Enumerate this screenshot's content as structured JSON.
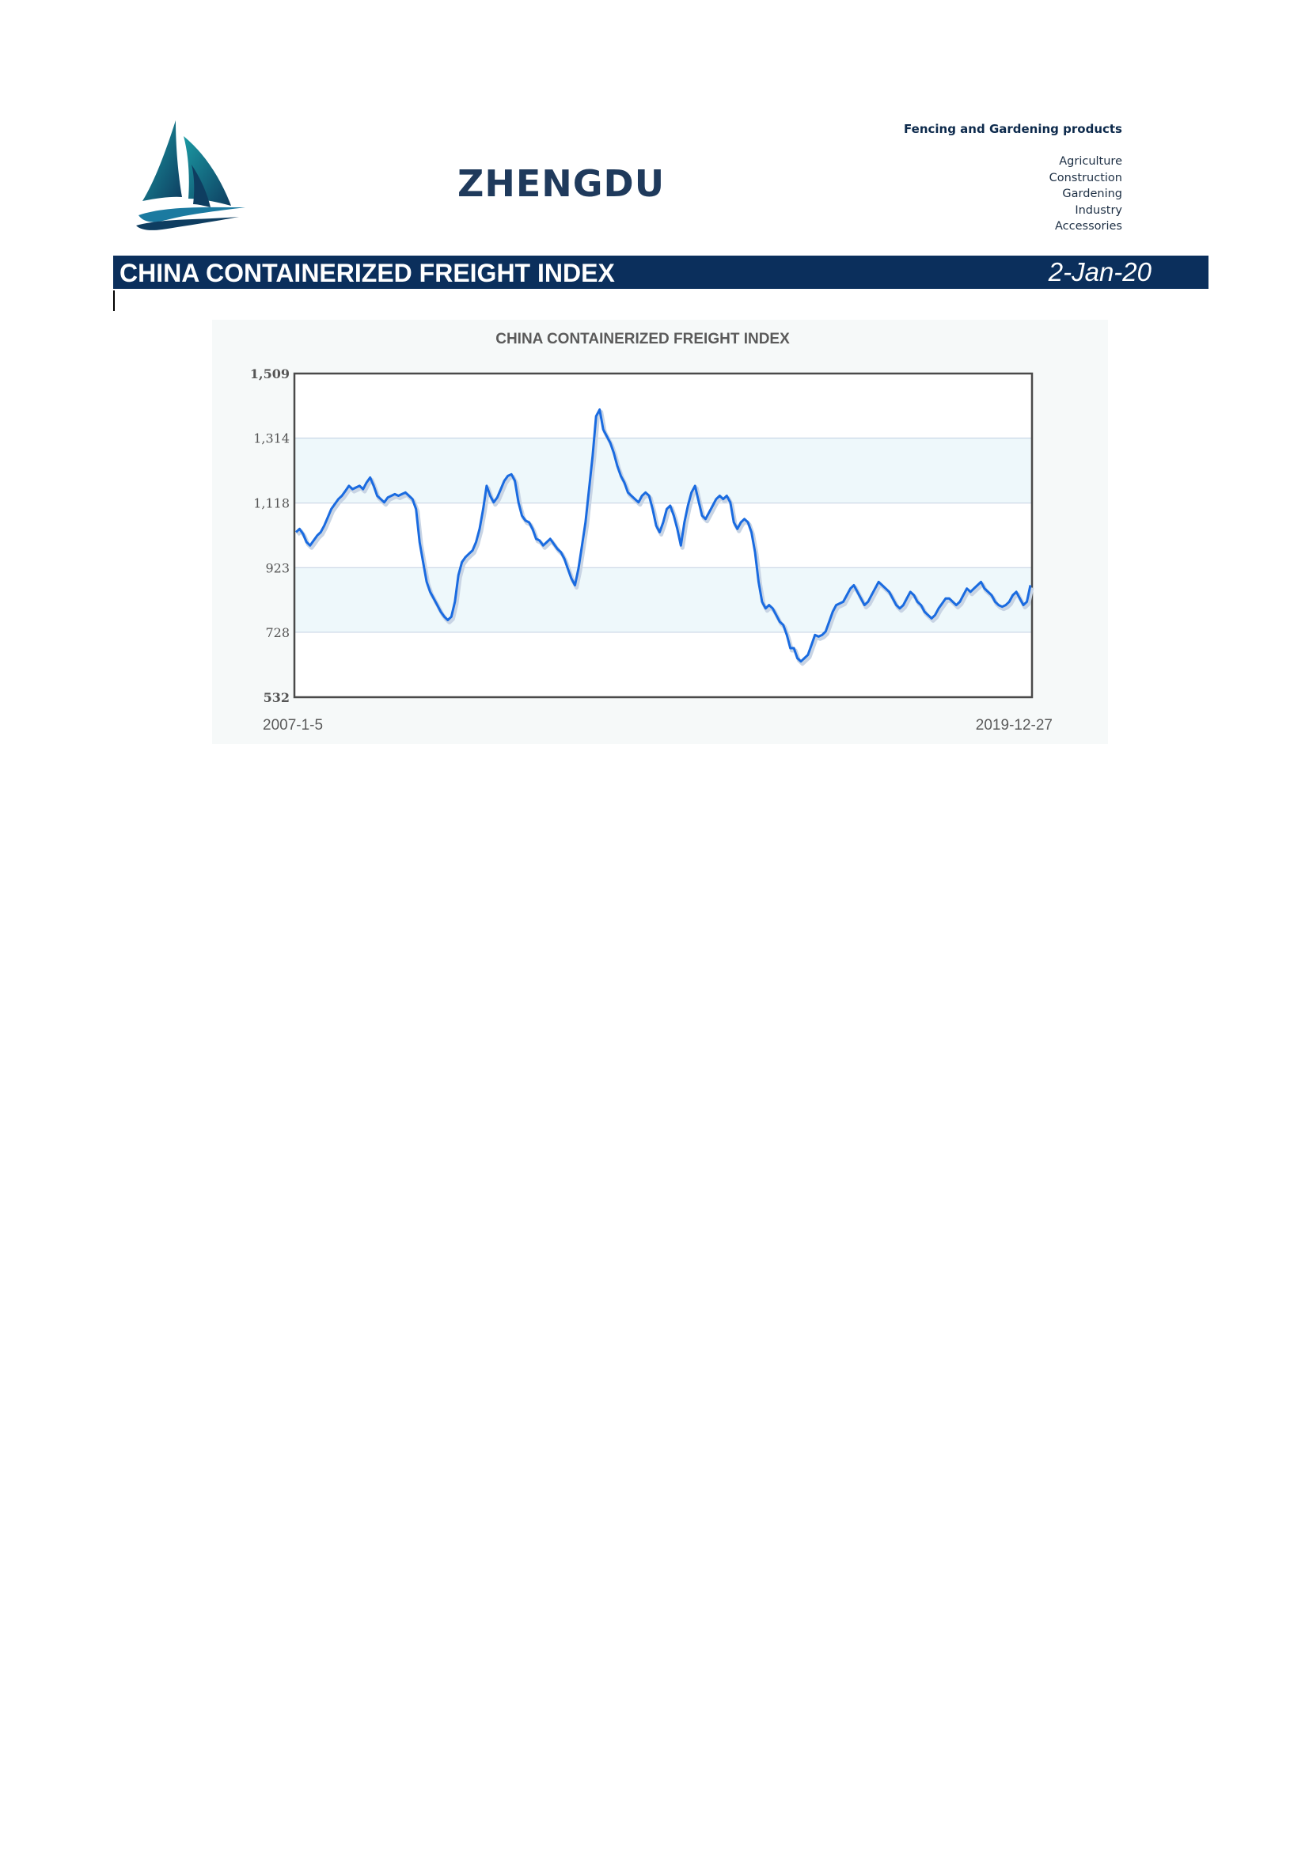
{
  "header": {
    "brand": "ZHENGDU",
    "tagline": "Fencing and Gardening products",
    "categories": [
      "Agriculture",
      "Construction",
      "Gardening",
      "Industry",
      "Accessories"
    ],
    "logo_icon": "sailboat-logo-icon"
  },
  "title_bar": {
    "title": "CHINA CONTAINERIZED FREIGHT INDEX",
    "date": "2-Jan-20",
    "background": "#0b2f5c"
  },
  "chart_data": {
    "type": "line",
    "title": "CHINA CONTAINERIZED FREIGHT INDEX",
    "xlabel": "",
    "ylabel": "",
    "ylim": [
      532,
      1509
    ],
    "yticks": [
      "1,509",
      "1,314",
      "1,118",
      "923",
      "728",
      "532"
    ],
    "ytick_values": [
      1509,
      1314,
      1118,
      923,
      728,
      532
    ],
    "x_start_label": "2007-1-5",
    "x_end_label": "2019-12-27",
    "grid": true,
    "line_color": "#1a6be0",
    "series": [
      {
        "values": [
          1030,
          1040,
          1025,
          1000,
          990,
          1005,
          1020,
          1030,
          1050,
          1075,
          1100,
          1115,
          1130,
          1140,
          1155,
          1170,
          1160,
          1165,
          1170,
          1160,
          1180,
          1195,
          1170,
          1140,
          1130,
          1120,
          1135,
          1140,
          1145,
          1140,
          1145,
          1150,
          1140,
          1130,
          1100,
          1000,
          940,
          880,
          850,
          830,
          810,
          790,
          775,
          765,
          775,
          820,
          900,
          940,
          955,
          965,
          975,
          1000,
          1040,
          1100,
          1170,
          1140,
          1120,
          1135,
          1160,
          1185,
          1200,
          1205,
          1185,
          1120,
          1080,
          1065,
          1060,
          1040,
          1010,
          1005,
          990,
          1000,
          1010,
          995,
          980,
          970,
          950,
          920,
          890,
          870,
          920,
          990,
          1060,
          1160,
          1260,
          1380,
          1400,
          1340,
          1320,
          1300,
          1270,
          1230,
          1200,
          1180,
          1150,
          1140,
          1130,
          1120,
          1140,
          1150,
          1140,
          1100,
          1050,
          1030,
          1060,
          1100,
          1110,
          1080,
          1040,
          990,
          1060,
          1110,
          1150,
          1170,
          1125,
          1080,
          1070,
          1090,
          1110,
          1130,
          1140,
          1130,
          1140,
          1120,
          1060,
          1040,
          1060,
          1070,
          1060,
          1030,
          970,
          880,
          820,
          800,
          810,
          800,
          780,
          760,
          750,
          720,
          680,
          680,
          650,
          640,
          650,
          660,
          690,
          720,
          715,
          720,
          730,
          760,
          790,
          810,
          815,
          820,
          840,
          860,
          870,
          850,
          830,
          810,
          820,
          840,
          860,
          880,
          870,
          860,
          850,
          830,
          810,
          800,
          810,
          830,
          850,
          840,
          820,
          810,
          790,
          780,
          770,
          780,
          800,
          815,
          830,
          830,
          820,
          810,
          820,
          840,
          860,
          850,
          860,
          870,
          880,
          860,
          850,
          840,
          820,
          810,
          805,
          810,
          820,
          840,
          850,
          830,
          810,
          820,
          870
        ]
      }
    ]
  }
}
